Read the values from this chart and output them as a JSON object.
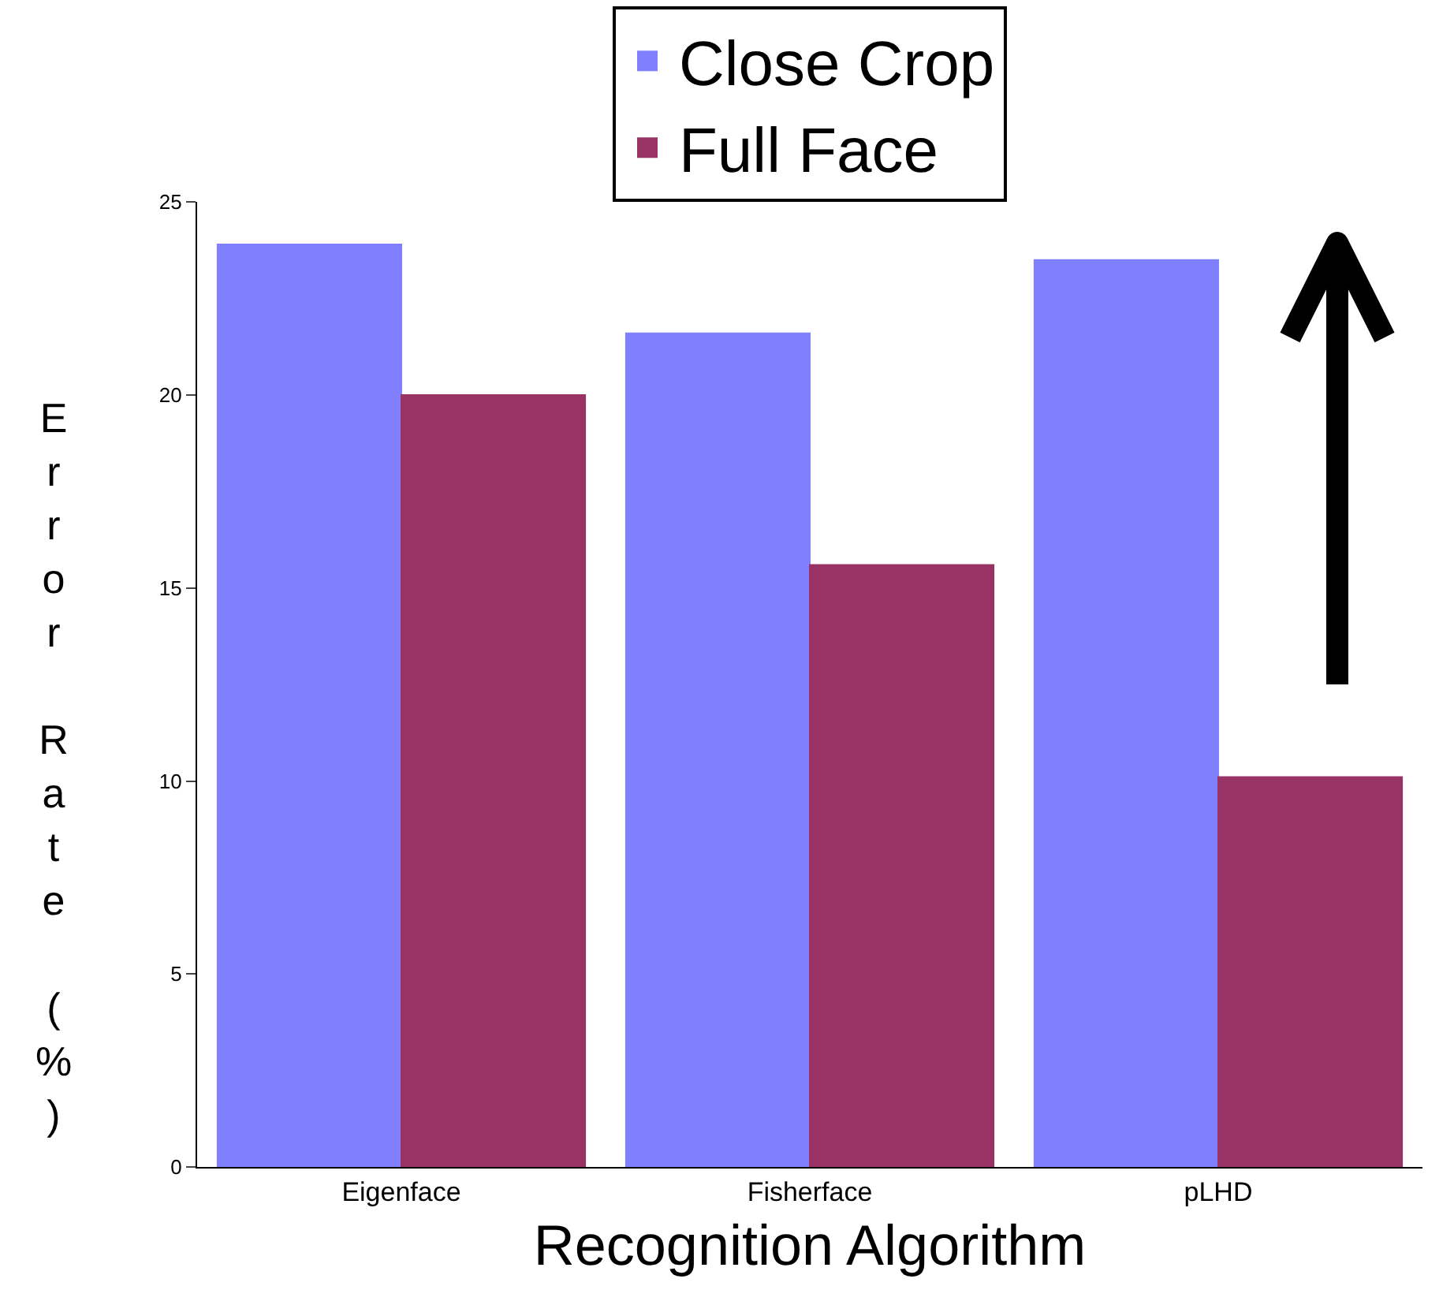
{
  "chart_data": {
    "type": "bar",
    "xlabel": "Recognition Algorithm",
    "ylabel": "Error Rate (%)",
    "categories": [
      "Eigenface",
      "Fisherface",
      "pLHD"
    ],
    "series": [
      {
        "name": "Close Crop",
        "color": "#8080ff",
        "values": [
          23.9,
          21.6,
          23.5
        ]
      },
      {
        "name": "Full Face",
        "color": "#993366",
        "values": [
          20.0,
          15.6,
          10.1
        ]
      }
    ],
    "ylim": [
      0,
      25
    ],
    "yticks": [
      0,
      5,
      10,
      15,
      20,
      25
    ],
    "grid": false,
    "legend": "top"
  }
}
